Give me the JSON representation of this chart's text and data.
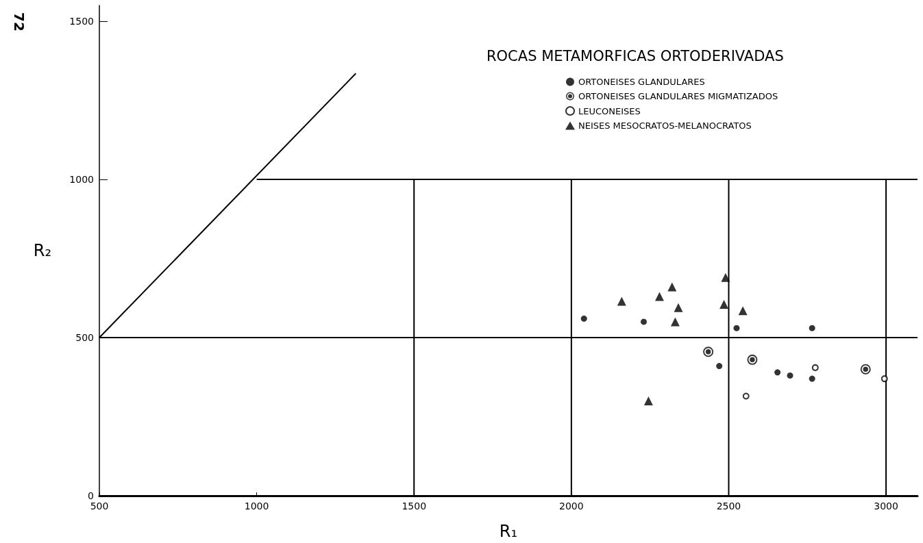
{
  "chart_data": {
    "type": "scatter",
    "title": "ROCAS METAMORFICAS ORTODERIVADAS",
    "xlabel": "R₁",
    "ylabel": "R₂",
    "annotations": [
      "72"
    ],
    "xlim": [
      500,
      3100
    ],
    "xticks": [
      500,
      1000,
      1500,
      2000,
      2500,
      3000
    ],
    "ylim": [
      0,
      1550
    ],
    "yticks": [
      0,
      500,
      1000,
      1500
    ],
    "grid": false,
    "legend": "top right",
    "series": [
      {
        "name": "ORTONEISES GLANDULARES",
        "color": "#000000",
        "marker": "circle",
        "x": [
          2040,
          2230,
          2525,
          2765,
          2470,
          2655,
          2695,
          2765
        ],
        "values": [
          560,
          550,
          530,
          530,
          410,
          390,
          380,
          370
        ]
      },
      {
        "name": "ORTONEISES GLANDULARES MIGMATIZADOS",
        "color": "#000000",
        "marker": "circle-dot",
        "x": [
          2435,
          2575,
          2935
        ],
        "values": [
          455,
          430,
          400
        ]
      },
      {
        "name": "LEUCONEISES",
        "color": "#000000",
        "marker": "circle-open",
        "x": [
          2775,
          2555,
          2995
        ],
        "values": [
          405,
          315,
          370
        ]
      },
      {
        "name": "NEISES MESOCRATOS-MELANOCRATOS",
        "color": "#000000",
        "marker": "triangle",
        "x": [
          2490,
          2320,
          2160,
          2280,
          2340,
          2485,
          2545,
          2330,
          2245
        ],
        "values": [
          690,
          660,
          615,
          630,
          595,
          605,
          585,
          550,
          300
        ]
      },
      {
        "type": "line",
        "color": "#000000",
        "marker": "none",
        "x": [
          500,
          1315
        ],
        "values": [
          500,
          1335
        ]
      },
      {
        "type": "line",
        "color": "#000000",
        "marker": "none",
        "x": [
          500,
          3100
        ],
        "values": [
          500,
          500
        ]
      },
      {
        "type": "line",
        "color": "#000000",
        "marker": "none",
        "x": [
          1000,
          3100
        ],
        "values": [
          1000,
          1000
        ]
      },
      {
        "type": "line",
        "color": "#000000",
        "marker": "none",
        "x": [
          1500,
          1500
        ],
        "values": [
          0,
          1000
        ]
      },
      {
        "type": "line",
        "color": "#000000",
        "marker": "none",
        "x": [
          2000,
          2000
        ],
        "values": [
          0,
          1000
        ]
      },
      {
        "type": "line",
        "color": "#000000",
        "marker": "none",
        "x": [
          2500,
          2500
        ],
        "values": [
          0,
          1000
        ]
      },
      {
        "type": "line",
        "color": "#000000",
        "marker": "none",
        "x": [
          3000,
          3000
        ],
        "values": [
          0,
          1000
        ]
      }
    ]
  }
}
